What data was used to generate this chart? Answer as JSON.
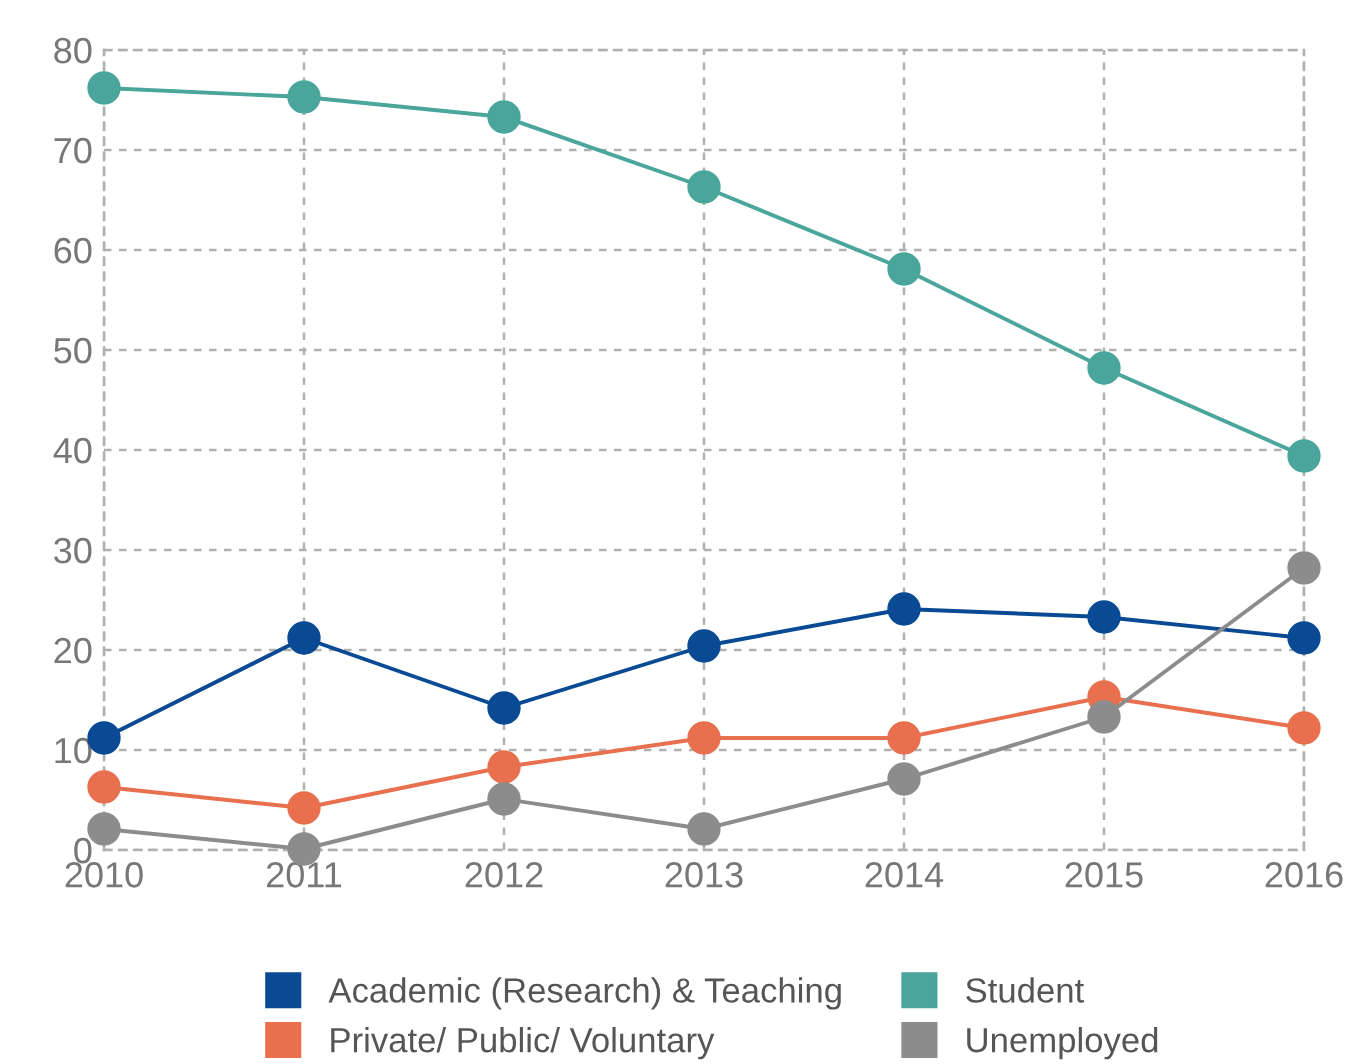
{
  "chart_data": {
    "type": "line",
    "categories": [
      "2010",
      "2011",
      "2012",
      "2013",
      "2014",
      "2015",
      "2016"
    ],
    "series": [
      {
        "name": "Academic (Research) & Teaching",
        "color": "#0a4a94",
        "values": [
          11.2,
          21.2,
          14.2,
          20.4,
          24.1,
          23.3,
          21.2
        ]
      },
      {
        "name": "Student",
        "color": "#4aa59a",
        "values": [
          76.2,
          75.3,
          73.3,
          66.3,
          58.1,
          48.2,
          39.4
        ]
      },
      {
        "name": "Private/ Public/ Voluntary",
        "color": "#e8704f",
        "values": [
          6.3,
          4.2,
          8.3,
          11.2,
          11.2,
          15.3,
          12.2
        ]
      },
      {
        "name": "Unemployed",
        "color": "#8c8c8c",
        "values": [
          2.1,
          0.1,
          5.1,
          2.1,
          7.1,
          13.3,
          28.2
        ]
      }
    ],
    "ylim": [
      0,
      80
    ],
    "yticks": [
      0,
      10,
      20,
      30,
      40,
      50,
      60,
      70,
      80
    ],
    "grid": true,
    "legend": "bottom",
    "marker": "circle",
    "line_style": "solid"
  }
}
